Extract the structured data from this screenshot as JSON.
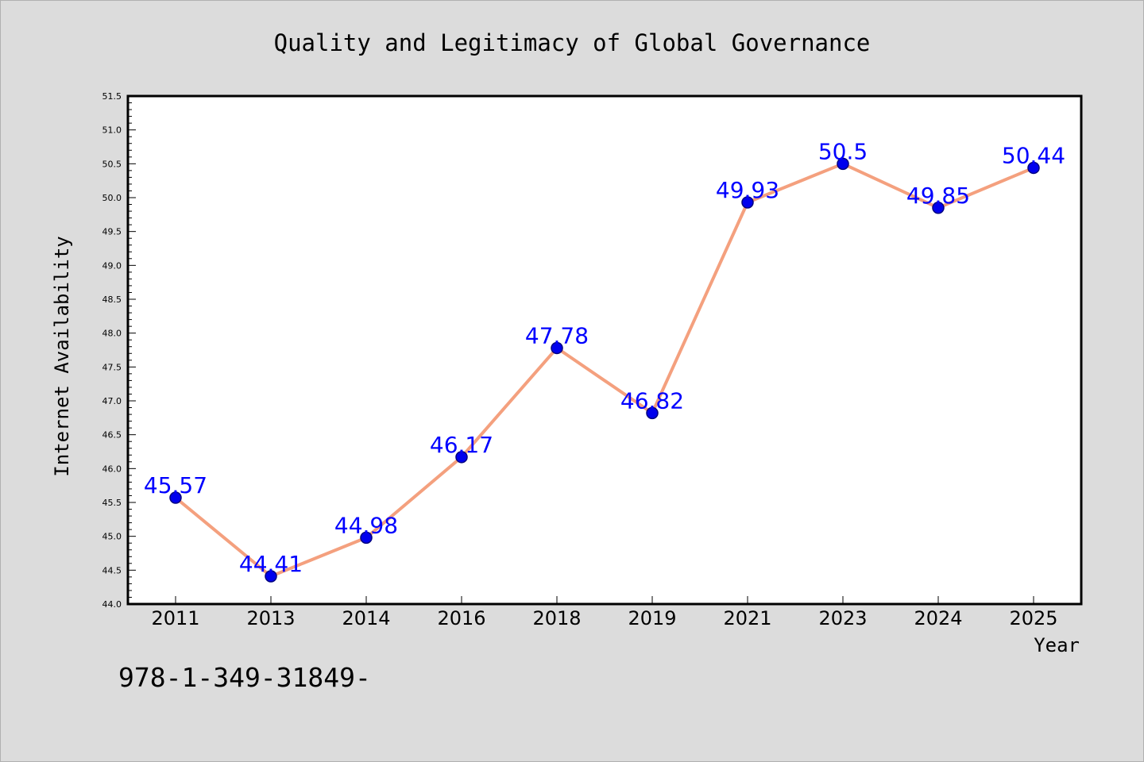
{
  "chart_data": {
    "type": "line",
    "title": "Quality and Legitimacy of Global Governance",
    "xlabel": "Year",
    "ylabel": "Internet Availability",
    "categories": [
      "2011",
      "2013",
      "2014",
      "2016",
      "2018",
      "2019",
      "2021",
      "2023",
      "2024",
      "2025"
    ],
    "series": [
      {
        "values": [
          45.57,
          44.41,
          44.98,
          46.17,
          47.78,
          46.82,
          49.93,
          50.5,
          49.85,
          50.44
        ],
        "labels": [
          "45.57",
          "44.41",
          "44.98",
          "46.17",
          "47.78",
          "46.82",
          "49.93",
          "50.5",
          "49.85",
          "50.44"
        ]
      }
    ],
    "ylim": [
      44.0,
      51.5
    ],
    "yticks": [
      "44.0",
      "44.5",
      "45.0",
      "45.5",
      "46.0",
      "46.5",
      "47.0",
      "47.5",
      "48.0",
      "48.5",
      "49.0",
      "49.5",
      "50.0",
      "50.5",
      "51.0",
      "51.5"
    ],
    "grid": false,
    "colors": {
      "line": "#f4a07e",
      "marker": "#0000ee",
      "marker_edge": "#000080",
      "data_label": "#0000ff",
      "background": "#dcdcdc",
      "plot_background": "#ffffff"
    }
  },
  "annotation": "978-1-349-31849-"
}
